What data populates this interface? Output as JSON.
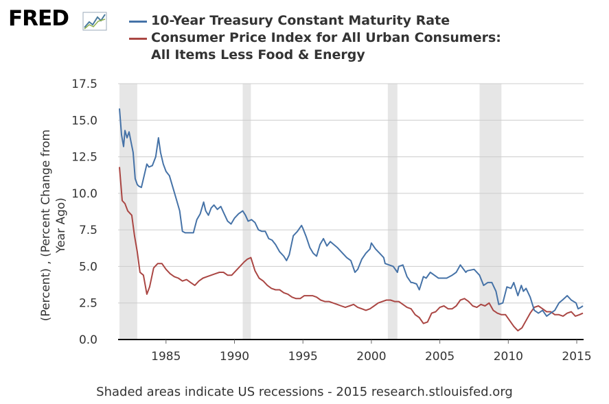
{
  "logo": {
    "text": "FRED"
  },
  "chart_data": {
    "type": "line",
    "title": "",
    "xlabel": "",
    "ylabel": "(Percent) , (Percent Change from Year Ago)",
    "ylabel_lines": [
      "(Percent) , (Percent Change from",
      "Year Ago)"
    ],
    "ylim": [
      0,
      17.5
    ],
    "xlim": [
      1981.5,
      2015.5
    ],
    "yticks": [
      "0.0",
      "2.5",
      "5.0",
      "7.5",
      "10.0",
      "12.5",
      "15.0",
      "17.5"
    ],
    "yticks_values": [
      0,
      2.5,
      5,
      7.5,
      10,
      12.5,
      15,
      17.5
    ],
    "xticks": [
      "1985",
      "1990",
      "1995",
      "2000",
      "2005",
      "2010",
      "2015"
    ],
    "xticks_values": [
      1985,
      1990,
      1995,
      2000,
      2005,
      2010,
      2015
    ],
    "grid": true,
    "legend_position": "top",
    "recessions": [
      [
        1981.6,
        1982.9
      ],
      [
        1990.6,
        1991.2
      ],
      [
        2001.2,
        2001.9
      ],
      [
        2007.9,
        2009.5
      ]
    ],
    "recession_color": "#e6e6e6",
    "series": [
      {
        "name": "10-Year Treasury Constant Maturity Rate",
        "color": "#4572a7",
        "x": [
          1981.6,
          1981.75,
          1981.9,
          1982.0,
          1982.15,
          1982.3,
          1982.45,
          1982.6,
          1982.75,
          1982.9,
          1983.0,
          1983.2,
          1983.4,
          1983.6,
          1983.75,
          1984.0,
          1984.25,
          1984.45,
          1984.6,
          1984.8,
          1985.0,
          1985.25,
          1985.5,
          1985.75,
          1986.0,
          1986.2,
          1986.4,
          1986.6,
          1986.8,
          1987.0,
          1987.25,
          1987.5,
          1987.75,
          1987.9,
          1988.1,
          1988.3,
          1988.5,
          1988.75,
          1989.0,
          1989.2,
          1989.5,
          1989.75,
          1990.0,
          1990.3,
          1990.6,
          1990.8,
          1991.0,
          1991.25,
          1991.5,
          1991.75,
          1992.0,
          1992.25,
          1992.5,
          1992.75,
          1993.0,
          1993.3,
          1993.6,
          1993.8,
          1994.0,
          1994.3,
          1994.6,
          1994.9,
          1995.0,
          1995.25,
          1995.5,
          1995.75,
          1996.0,
          1996.25,
          1996.5,
          1996.75,
          1997.0,
          1997.5,
          1997.9,
          1998.2,
          1998.5,
          1998.8,
          1999.0,
          1999.3,
          1999.6,
          1999.9,
          2000.0,
          2000.3,
          2000.6,
          2000.9,
          2001.0,
          2001.3,
          2001.6,
          2001.9,
          2002.0,
          2002.3,
          2002.6,
          2002.9,
          2003.0,
          2003.3,
          2003.5,
          2003.8,
          2004.0,
          2004.3,
          2004.6,
          2004.9,
          2005.0,
          2005.5,
          2005.9,
          2006.2,
          2006.5,
          2006.9,
          2007.0,
          2007.5,
          2007.9,
          2008.2,
          2008.5,
          2008.8,
          2008.95,
          2009.1,
          2009.3,
          2009.6,
          2009.9,
          2010.2,
          2010.4,
          2010.7,
          2010.95,
          2011.1,
          2011.3,
          2011.6,
          2011.9,
          2012.2,
          2012.5,
          2012.8,
          2013.1,
          2013.4,
          2013.7,
          2013.95,
          2014.3,
          2014.6,
          2014.95,
          2015.1,
          2015.3,
          2015.45
        ],
        "y": [
          15.8,
          14.0,
          13.2,
          14.3,
          13.8,
          14.2,
          13.5,
          12.8,
          11.0,
          10.6,
          10.5,
          10.4,
          11.2,
          12.0,
          11.8,
          11.9,
          12.5,
          13.8,
          12.8,
          12.0,
          11.5,
          11.2,
          10.4,
          9.6,
          8.8,
          7.4,
          7.3,
          7.3,
          7.3,
          7.3,
          8.2,
          8.6,
          9.4,
          8.8,
          8.5,
          9.0,
          9.2,
          8.9,
          9.1,
          8.7,
          8.1,
          7.9,
          8.3,
          8.6,
          8.8,
          8.5,
          8.1,
          8.2,
          8.0,
          7.5,
          7.4,
          7.4,
          6.9,
          6.8,
          6.5,
          6.0,
          5.7,
          5.4,
          5.8,
          7.1,
          7.4,
          7.8,
          7.6,
          7.0,
          6.3,
          5.9,
          5.7,
          6.5,
          6.9,
          6.4,
          6.7,
          6.3,
          5.9,
          5.6,
          5.4,
          4.6,
          4.8,
          5.5,
          5.9,
          6.2,
          6.6,
          6.2,
          5.9,
          5.6,
          5.2,
          5.1,
          5.0,
          4.6,
          5.0,
          5.1,
          4.3,
          3.9,
          3.9,
          3.8,
          3.4,
          4.3,
          4.2,
          4.6,
          4.4,
          4.2,
          4.2,
          4.2,
          4.4,
          4.6,
          5.1,
          4.6,
          4.7,
          4.8,
          4.4,
          3.7,
          3.9,
          3.9,
          3.6,
          3.3,
          2.4,
          2.5,
          3.6,
          3.5,
          3.9,
          3.0,
          3.7,
          3.3,
          3.5,
          2.9,
          2.0,
          1.8,
          2.0,
          1.6,
          1.8,
          2.0,
          2.5,
          2.7,
          3.0,
          2.7,
          2.5,
          2.1,
          2.2,
          2.3
        ]
      },
      {
        "name": "Consumer Price Index for All Urban Consumers: All Items Less Food & Energy",
        "name_lines": [
          "Consumer Price Index for All Urban Consumers:",
          "All Items Less Food & Energy"
        ],
        "color": "#aa4643",
        "x": [
          1981.6,
          1981.8,
          1982.0,
          1982.2,
          1982.5,
          1982.7,
          1982.9,
          1983.1,
          1983.35,
          1983.6,
          1983.8,
          1984.1,
          1984.4,
          1984.7,
          1985.0,
          1985.3,
          1985.6,
          1985.9,
          1986.2,
          1986.5,
          1986.8,
          1987.1,
          1987.4,
          1987.7,
          1988.0,
          1988.3,
          1988.6,
          1988.9,
          1989.2,
          1989.5,
          1989.8,
          1990.1,
          1990.4,
          1990.7,
          1990.95,
          1991.2,
          1991.5,
          1991.8,
          1992.1,
          1992.4,
          1992.7,
          1993.0,
          1993.3,
          1993.6,
          1993.9,
          1994.2,
          1994.5,
          1994.8,
          1995.1,
          1995.4,
          1995.7,
          1996.0,
          1996.3,
          1996.6,
          1996.9,
          1997.2,
          1997.5,
          1997.8,
          1998.1,
          1998.4,
          1998.7,
          1999.0,
          1999.3,
          1999.6,
          1999.9,
          2000.2,
          2000.5,
          2000.8,
          2001.1,
          2001.4,
          2001.7,
          2002.0,
          2002.3,
          2002.6,
          2002.9,
          2003.2,
          2003.5,
          2003.8,
          2004.1,
          2004.4,
          2004.7,
          2005.0,
          2005.3,
          2005.6,
          2005.9,
          2006.2,
          2006.5,
          2006.8,
          2007.1,
          2007.4,
          2007.7,
          2008.0,
          2008.3,
          2008.6,
          2008.9,
          2009.2,
          2009.5,
          2009.8,
          2010.1,
          2010.4,
          2010.7,
          2011.0,
          2011.3,
          2011.6,
          2011.9,
          2012.2,
          2012.5,
          2012.8,
          2013.1,
          2013.4,
          2013.7,
          2014.0,
          2014.3,
          2014.6,
          2014.9,
          2015.2,
          2015.45
        ],
        "y": [
          11.8,
          9.5,
          9.3,
          8.8,
          8.5,
          7.1,
          6.0,
          4.6,
          4.4,
          3.1,
          3.6,
          4.9,
          5.2,
          5.2,
          4.8,
          4.5,
          4.3,
          4.2,
          4.0,
          4.1,
          3.9,
          3.7,
          4.0,
          4.2,
          4.3,
          4.4,
          4.5,
          4.6,
          4.6,
          4.4,
          4.4,
          4.7,
          5.0,
          5.3,
          5.5,
          5.6,
          4.7,
          4.2,
          4.0,
          3.7,
          3.5,
          3.4,
          3.4,
          3.2,
          3.1,
          2.9,
          2.8,
          2.8,
          3.0,
          3.0,
          3.0,
          2.9,
          2.7,
          2.6,
          2.6,
          2.5,
          2.4,
          2.3,
          2.2,
          2.3,
          2.4,
          2.2,
          2.1,
          2.0,
          2.1,
          2.3,
          2.5,
          2.6,
          2.7,
          2.7,
          2.6,
          2.6,
          2.4,
          2.2,
          2.1,
          1.7,
          1.5,
          1.1,
          1.2,
          1.8,
          1.9,
          2.2,
          2.3,
          2.1,
          2.1,
          2.3,
          2.7,
          2.8,
          2.6,
          2.3,
          2.2,
          2.4,
          2.3,
          2.5,
          2.0,
          1.8,
          1.7,
          1.7,
          1.3,
          0.9,
          0.6,
          0.8,
          1.3,
          1.8,
          2.2,
          2.3,
          2.1,
          1.9,
          1.9,
          1.7,
          1.7,
          1.6,
          1.8,
          1.9,
          1.6,
          1.7,
          1.8
        ]
      }
    ]
  },
  "footer": {
    "text": "Shaded areas indicate US recessions - 2015 research.stlouisfed.org"
  }
}
